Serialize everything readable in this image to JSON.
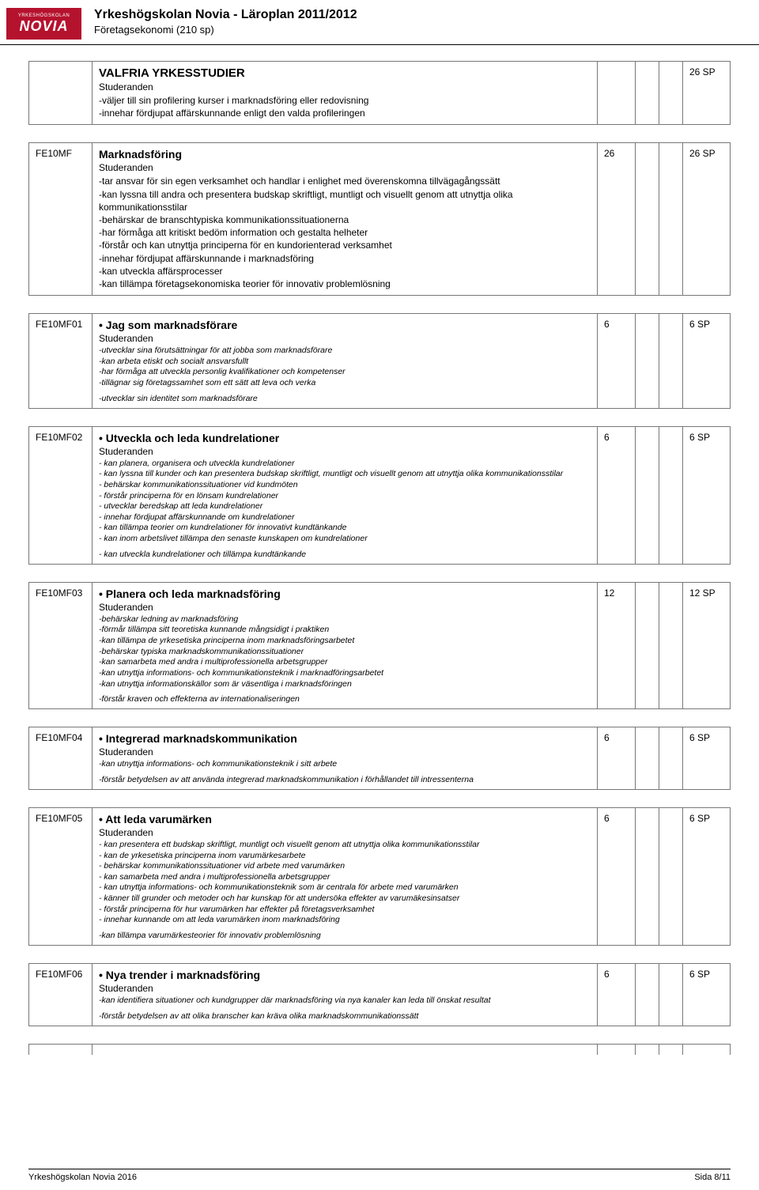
{
  "header": {
    "logo_top": "YRKESHÖGSKOLAN",
    "logo_main": "NOVIA",
    "title": "Yrkeshögskolan Novia - Läroplan 2011/2012",
    "subtitle": "Företagsekonomi (210 sp)"
  },
  "intro": {
    "title": "VALFRIA YRKESSTUDIER",
    "stud": "Studeranden",
    "lines": [
      "-väljer till sin profilering kurser i marknadsföring eller redovisning",
      "-innehar fördjupat affärskunnande enligt den valda profileringen"
    ],
    "sp": "26 SP"
  },
  "sections": [
    {
      "code": "FE10MF",
      "title": "Marknadsföring",
      "stud": "Studeranden",
      "n1": "26",
      "sp": "26 SP",
      "small": false,
      "lines": [
        "-tar ansvar för sin egen verksamhet och handlar i enlighet med överenskomna tillvägagångssätt",
        "-kan lyssna till andra och presentera budskap skriftligt, muntligt och visuellt genom att utnyttja olika kommunikationsstilar",
        "-behärskar de branschtypiska kommunikationssituationerna",
        "-har förmåga att kritiskt bedöm information och gestalta helheter",
        "-förstår och kan utnyttja principerna för en kundorienterad verksamhet",
        "-innehar fördjupat affärskunnande i marknadsföring",
        "-kan utveckla affärsprocesser",
        "-kan tillämpa företagsekonomiska teorier för innovativ problemlösning"
      ],
      "extra": ""
    },
    {
      "code": "FE10MF01",
      "title": "Jag som marknadsförare",
      "stud": "Studeranden",
      "n1": "6",
      "sp": "6 SP",
      "small": true,
      "lines": [
        "-utvecklar sina förutsättningar för att jobba som marknadsförare",
        "-kan arbeta etiskt och socialt ansvarsfullt",
        "-har förmåga att utveckla personlig kvalifikationer och kompetenser",
        "-tillägnar sig företagssamhet som ett sätt att leva och verka"
      ],
      "extra": "-utvecklar sin identitet som marknadsförare"
    },
    {
      "code": "FE10MF02",
      "title": "Utveckla och leda kundrelationer",
      "stud": "Studeranden",
      "n1": "6",
      "sp": "6 SP",
      "small": true,
      "lines": [
        "- kan planera, organisera och utveckla kundrelationer",
        "- kan lyssna till kunder och kan presentera budskap skriftligt, muntligt och visuellt genom att utnyttja olika kommunikationsstilar",
        "- behärskar kommunikationssituationer vid kundmöten",
        "- förstår principerna för en lönsam kundrelationer",
        "- utvecklar beredskap att leda kundrelationer",
        "- innehar fördjupat affärskunnande om kundrelationer",
        "- kan tillämpa teorier om kundrelationer för innovativt kundtänkande",
        "- kan inom arbetslivet tillämpa den senaste kunskapen om kundrelationer"
      ],
      "extra": "- kan utveckla kundrelationer och tillämpa kundtänkande"
    },
    {
      "code": "FE10MF03",
      "title": "Planera och leda marknadsföring",
      "stud": "Studeranden",
      "n1": "12",
      "sp": "12 SP",
      "small": true,
      "lines": [
        "-behärskar ledning av marknadsföring",
        "-förmår tillämpa sitt teoretiska kunnande mångsidigt i praktiken",
        "-kan tillämpa de yrkesetiska principerna inom marknadsföringsarbetet",
        "-behärskar typiska marknadskommunikationssituationer",
        "-kan samarbeta med andra i multiprofessionella arbetsgrupper",
        "-kan utnyttja informations- och kommunikationsteknik i marknadföringsarbetet",
        "-kan utnyttja informationskällor som är väsentliga i marknadsföringen"
      ],
      "extra": "-förstår kraven och effekterna av internationaliseringen"
    },
    {
      "code": "FE10MF04",
      "title": "Integrerad marknadskommunikation",
      "stud": "Studeranden",
      "n1": "6",
      "sp": "6 SP",
      "small": true,
      "lines": [
        "-kan utnyttja informations- och kommunikationsteknik i sitt arbete"
      ],
      "extra": "-förstår betydelsen av att använda integrerad marknadskommunikation i förhållandet till intressenterna"
    },
    {
      "code": "FE10MF05",
      "title": "Att leda varumärken",
      "stud": "Studeranden",
      "n1": "6",
      "sp": "6 SP",
      "small": true,
      "lines": [
        "- kan presentera ett budskap skriftligt, muntligt och visuellt genom att utnyttja olika kommunikationsstilar",
        "- kan de yrkesetiska principerna inom varumärkesarbete",
        "- behärskar kommunikationssituationer vid arbete med varumärken",
        "- kan samarbeta med andra i multiprofessionella arbetsgrupper",
        "- kan utnyttja informations- och kommunikationsteknik som är centrala för arbete med varumärken",
        "- känner till grunder och metoder och har kunskap för att undersöka effekter av varumäkesinsatser",
        "- förstår principerna för hur varumärken har effekter på företagsverksamhet",
        "- innehar kunnande om att leda varumärken inom marknadsföring"
      ],
      "extra": "-kan tillämpa varumärkesteorier för innovativ problemlösning"
    },
    {
      "code": "FE10MF06",
      "title": "Nya trender i marknadsföring",
      "stud": "Studeranden",
      "n1": "6",
      "sp": "6 SP",
      "small": true,
      "lines": [
        "-kan identifiera situationer och kundgrupper där marknadsföring via nya kanaler kan leda till önskat resultat"
      ],
      "extra": "-förstår betydelsen av att olika branscher kan kräva olika marknadskommunikationssätt"
    }
  ],
  "footer": {
    "left": "Yrkeshögskolan Novia 2016",
    "right": "Sida 8/11"
  }
}
